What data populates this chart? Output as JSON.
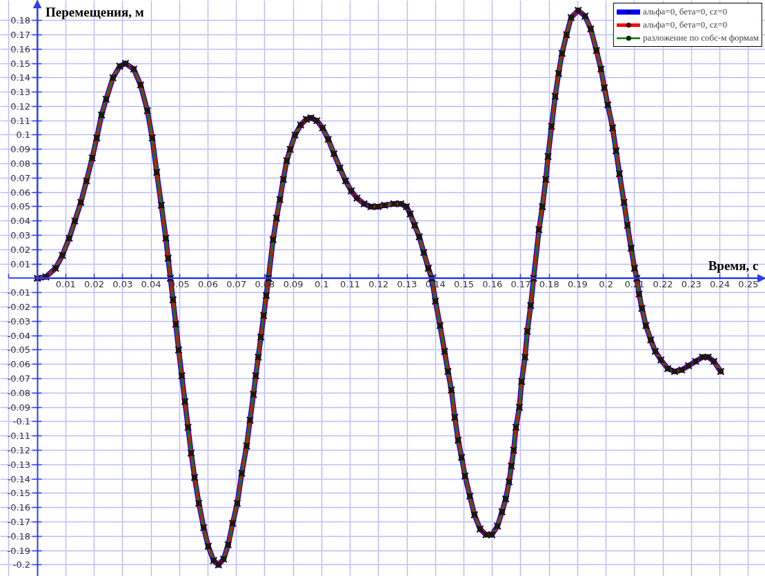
{
  "chart_data": {
    "type": "line",
    "xlabel": "Время, с",
    "ylabel": "Перемещения, м",
    "x": [
      0,
      0.003,
      0.0064,
      0.0088,
      0.0112,
      0.0132,
      0.0153,
      0.0173,
      0.0193,
      0.0209,
      0.0226,
      0.0242,
      0.0266,
      0.029,
      0.031,
      0.0339,
      0.0363,
      0.0387,
      0.0404,
      0.042,
      0.0436,
      0.0452,
      0.046,
      0.0468,
      0.0477,
      0.0487,
      0.0497,
      0.0508,
      0.0519,
      0.053,
      0.0541,
      0.0553,
      0.0568,
      0.0585,
      0.0601,
      0.062,
      0.0637,
      0.0655,
      0.0671,
      0.0687,
      0.0703,
      0.0719,
      0.0736,
      0.0748,
      0.076,
      0.0768,
      0.0777,
      0.0786,
      0.0796,
      0.0805,
      0.0813,
      0.0829,
      0.0841,
      0.0853,
      0.0865,
      0.0877,
      0.0889,
      0.0906,
      0.0926,
      0.0946,
      0.0962,
      0.0983,
      0.1003,
      0.1023,
      0.1043,
      0.1064,
      0.1084,
      0.1104,
      0.1124,
      0.1149,
      0.1173,
      0.1197,
      0.1221,
      0.1254,
      0.1278,
      0.1298,
      0.1311,
      0.1327,
      0.1343,
      0.1359,
      0.1375,
      0.1387,
      0.14,
      0.1416,
      0.1432,
      0.1444,
      0.1456,
      0.1468,
      0.148,
      0.1492,
      0.1504,
      0.1521,
      0.1537,
      0.1557,
      0.1578,
      0.1598,
      0.1618,
      0.1634,
      0.1647,
      0.1659,
      0.1667,
      0.1675,
      0.1683,
      0.1695,
      0.1703,
      0.1715,
      0.1723,
      0.1735,
      0.1745,
      0.1764,
      0.1776,
      0.1788,
      0.1796,
      0.1808,
      0.1821,
      0.1833,
      0.1845,
      0.1861,
      0.1877,
      0.1902,
      0.1926,
      0.1946,
      0.1966,
      0.1982,
      0.1994,
      0.2006,
      0.2023,
      0.2035,
      0.2047,
      0.2063,
      0.2075,
      0.2088,
      0.21,
      0.2108,
      0.2116,
      0.2126,
      0.214,
      0.2157,
      0.2173,
      0.2193,
      0.2217,
      0.2241,
      0.2266,
      0.229,
      0.2315,
      0.2339,
      0.2359,
      0.2379,
      0.2403
    ],
    "series": [
      {
        "name": "альфа=0, бета=0, cz=0",
        "color": "#0000ff",
        "marker": "cross",
        "values": [
          0,
          0.001,
          0.007,
          0.016,
          0.028,
          0.04,
          0.053,
          0.068,
          0.084,
          0.098,
          0.114,
          0.125,
          0.14,
          0.148,
          0.15,
          0.146,
          0.135,
          0.117,
          0.098,
          0.074,
          0.051,
          0.028,
          0.014,
          0,
          -0.015,
          -0.032,
          -0.05,
          -0.068,
          -0.086,
          -0.104,
          -0.122,
          -0.139,
          -0.157,
          -0.174,
          -0.187,
          -0.197,
          -0.2,
          -0.196,
          -0.186,
          -0.171,
          -0.157,
          -0.136,
          -0.117,
          -0.099,
          -0.081,
          -0.068,
          -0.055,
          -0.041,
          -0.026,
          -0.012,
          0,
          0.027,
          0.042,
          0.055,
          0.069,
          0.082,
          0.09,
          0.1,
          0.107,
          0.111,
          0.112,
          0.11,
          0.105,
          0.097,
          0.087,
          0.077,
          0.068,
          0.061,
          0.056,
          0.052,
          0.05,
          0.05,
          0.051,
          0.052,
          0.052,
          0.05,
          0.045,
          0.037,
          0.029,
          0.018,
          0.007,
          0,
          -0.016,
          -0.033,
          -0.051,
          -0.065,
          -0.078,
          -0.097,
          -0.113,
          -0.125,
          -0.138,
          -0.152,
          -0.165,
          -0.175,
          -0.179,
          -0.179,
          -0.173,
          -0.163,
          -0.154,
          -0.142,
          -0.131,
          -0.12,
          -0.104,
          -0.09,
          -0.072,
          -0.055,
          -0.037,
          -0.019,
          0,
          0.034,
          0.05,
          0.069,
          0.085,
          0.106,
          0.127,
          0.143,
          0.157,
          0.17,
          0.182,
          0.187,
          0.183,
          0.174,
          0.159,
          0.146,
          0.133,
          0.121,
          0.105,
          0.089,
          0.073,
          0.053,
          0.037,
          0.021,
          0.007,
          0,
          -0.011,
          -0.021,
          -0.033,
          -0.043,
          -0.051,
          -0.057,
          -0.063,
          -0.065,
          -0.064,
          -0.061,
          -0.058,
          -0.055,
          -0.055,
          -0.058,
          -0.065
        ]
      },
      {
        "name": "альфа=0, бета=0, cz=0",
        "color": "#ff0000",
        "marker": "circle",
        "values": [
          0,
          0.001,
          0.007,
          0.016,
          0.028,
          0.04,
          0.053,
          0.068,
          0.084,
          0.098,
          0.114,
          0.125,
          0.14,
          0.148,
          0.15,
          0.146,
          0.135,
          0.117,
          0.098,
          0.074,
          0.051,
          0.028,
          0.014,
          0,
          -0.015,
          -0.032,
          -0.05,
          -0.068,
          -0.086,
          -0.104,
          -0.122,
          -0.139,
          -0.157,
          -0.174,
          -0.187,
          -0.197,
          -0.2,
          -0.196,
          -0.186,
          -0.171,
          -0.157,
          -0.136,
          -0.117,
          -0.099,
          -0.081,
          -0.068,
          -0.055,
          -0.041,
          -0.026,
          -0.012,
          0,
          0.027,
          0.042,
          0.055,
          0.069,
          0.082,
          0.09,
          0.1,
          0.107,
          0.111,
          0.112,
          0.11,
          0.105,
          0.097,
          0.087,
          0.077,
          0.068,
          0.061,
          0.056,
          0.052,
          0.05,
          0.05,
          0.051,
          0.052,
          0.052,
          0.05,
          0.045,
          0.037,
          0.029,
          0.018,
          0.007,
          0,
          -0.016,
          -0.033,
          -0.051,
          -0.065,
          -0.078,
          -0.097,
          -0.113,
          -0.125,
          -0.138,
          -0.152,
          -0.165,
          -0.175,
          -0.179,
          -0.179,
          -0.173,
          -0.163,
          -0.154,
          -0.142,
          -0.131,
          -0.12,
          -0.104,
          -0.09,
          -0.072,
          -0.055,
          -0.037,
          -0.019,
          0,
          0.034,
          0.05,
          0.069,
          0.085,
          0.106,
          0.127,
          0.143,
          0.157,
          0.17,
          0.182,
          0.187,
          0.183,
          0.174,
          0.159,
          0.146,
          0.133,
          0.121,
          0.105,
          0.089,
          0.073,
          0.053,
          0.037,
          0.021,
          0.007,
          0,
          -0.011,
          -0.021,
          -0.033,
          -0.043,
          -0.051,
          -0.057,
          -0.063,
          -0.065,
          -0.064,
          -0.061,
          -0.058,
          -0.055,
          -0.055,
          -0.058,
          -0.065
        ]
      },
      {
        "name": "разложение по собс-м формам",
        "color": "#008000",
        "marker": "circle",
        "values": [
          0,
          0.001,
          0.007,
          0.016,
          0.028,
          0.04,
          0.053,
          0.068,
          0.084,
          0.098,
          0.114,
          0.125,
          0.14,
          0.148,
          0.15,
          0.146,
          0.135,
          0.117,
          0.098,
          0.074,
          0.051,
          0.028,
          0.014,
          0,
          -0.015,
          -0.032,
          -0.05,
          -0.068,
          -0.086,
          -0.104,
          -0.122,
          -0.139,
          -0.157,
          -0.174,
          -0.187,
          -0.197,
          -0.2,
          -0.196,
          -0.186,
          -0.171,
          -0.157,
          -0.136,
          -0.117,
          -0.099,
          -0.081,
          -0.068,
          -0.055,
          -0.041,
          -0.026,
          -0.012,
          0,
          0.027,
          0.042,
          0.055,
          0.069,
          0.082,
          0.09,
          0.1,
          0.107,
          0.111,
          0.112,
          0.11,
          0.105,
          0.097,
          0.087,
          0.077,
          0.068,
          0.061,
          0.056,
          0.052,
          0.05,
          0.05,
          0.051,
          0.052,
          0.052,
          0.05,
          0.045,
          0.037,
          0.029,
          0.018,
          0.007,
          0,
          -0.016,
          -0.033,
          -0.051,
          -0.065,
          -0.078,
          -0.097,
          -0.113,
          -0.125,
          -0.138,
          -0.152,
          -0.165,
          -0.175,
          -0.179,
          -0.179,
          -0.173,
          -0.163,
          -0.154,
          -0.142,
          -0.131,
          -0.12,
          -0.104,
          -0.09,
          -0.072,
          -0.055,
          -0.037,
          -0.019,
          0,
          0.034,
          0.05,
          0.069,
          0.085,
          0.106,
          0.127,
          0.143,
          0.157,
          0.17,
          0.182,
          0.187,
          0.183,
          0.174,
          0.159,
          0.146,
          0.133,
          0.121,
          0.105,
          0.089,
          0.073,
          0.053,
          0.037,
          0.021,
          0.007,
          0,
          -0.011,
          -0.021,
          -0.033,
          -0.043,
          -0.051,
          -0.057,
          -0.063,
          -0.065,
          -0.064,
          -0.061,
          -0.058,
          -0.055,
          -0.055,
          -0.058,
          -0.065
        ]
      }
    ],
    "xlim": [
      -0.013,
      0.256
    ],
    "ylim": [
      -0.208,
      0.194
    ],
    "xticks": [
      {
        "value": -0.01,
        "label": null
      },
      0.01,
      0.02,
      0.03,
      0.04,
      0.05,
      0.06,
      0.07,
      0.08,
      0.09,
      0.1,
      0.11,
      0.12,
      0.13,
      0.14,
      0.15,
      0.16,
      0.17,
      0.18,
      0.19,
      0.2,
      0.21,
      0.22,
      0.23,
      0.24,
      0.25
    ],
    "yticks": [
      -0.2,
      -0.19,
      -0.18,
      -0.17,
      -0.16,
      -0.15,
      -0.14,
      -0.13,
      -0.12,
      -0.11,
      -0.1,
      -0.09,
      -0.08,
      -0.07,
      -0.06,
      -0.05,
      -0.04,
      -0.03,
      -0.02,
      -0.01,
      0.01,
      0.02,
      0.03,
      0.04,
      0.05,
      0.06,
      0.07,
      0.08,
      0.09,
      0.1,
      0.11,
      0.12,
      0.13,
      0.14,
      0.15,
      0.16,
      0.17,
      0.18
    ],
    "grid": true,
    "legend": "top right"
  }
}
